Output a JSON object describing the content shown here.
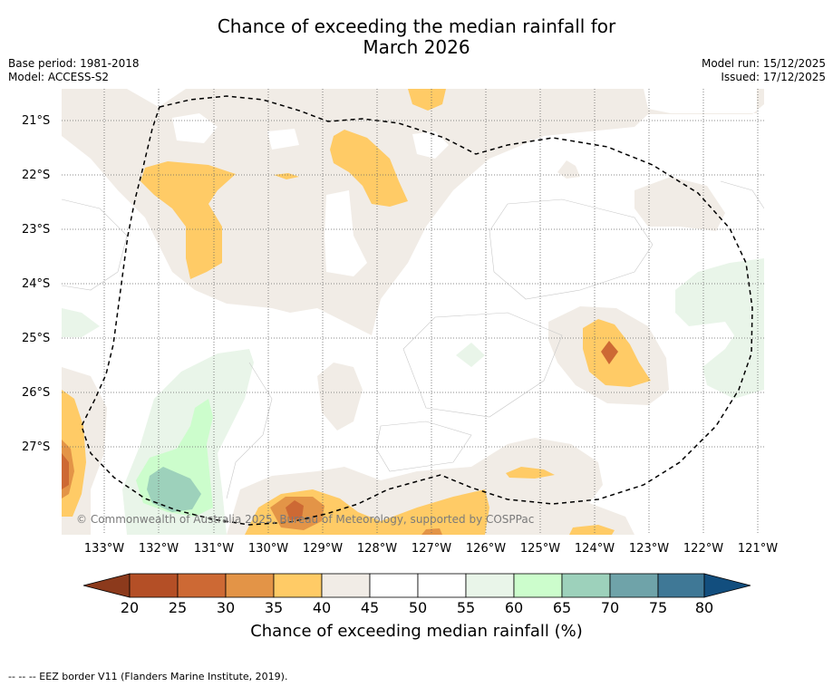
{
  "title_line1": "Chance of exceeding the median rainfall for",
  "title_line2": "March 2026",
  "base_period": "Base period: 1981-2018",
  "model": "Model: ACCESS-S2",
  "model_run": "Model run: 15/12/2025",
  "issued": "Issued: 17/12/2025",
  "lat_labels": [
    "21°S",
    "22°S",
    "23°S",
    "24°S",
    "25°S",
    "26°S",
    "27°S"
  ],
  "lon_labels": [
    "133°W",
    "132°W",
    "131°W",
    "130°W",
    "129°W",
    "128°W",
    "127°W",
    "126°W",
    "125°W",
    "124°W",
    "123°W",
    "122°W",
    "121°W"
  ],
  "copyright": "© Commonwealth of Australia 2025, Bureau of Meteorology, supported by COSPPac",
  "colorbar": {
    "ticks": [
      "20",
      "25",
      "30",
      "35",
      "40",
      "45",
      "50",
      "55",
      "60",
      "65",
      "70",
      "75",
      "80"
    ],
    "label": "Chance of exceeding median rainfall (%)",
    "colors": {
      "below20": "#8c3a1c",
      "c20_25": "#b44f26",
      "c25_30": "#cd6934",
      "c30_35": "#e39447",
      "c35_40": "#ffcb66",
      "c40_45": "#f1ece6",
      "c45_50": "#ffffff",
      "c50_55": "#ffffff",
      "c55_60": "#e9f5e9",
      "c60_65": "#ccfdcc",
      "c65_70": "#9dd1bb",
      "c70_75": "#6fa3a9",
      "c75_80": "#3f7896",
      "above80": "#124e7e"
    }
  },
  "footnote": "--  --  -- EEZ border V11 (Flanders Marine Institute, 2019)."
}
